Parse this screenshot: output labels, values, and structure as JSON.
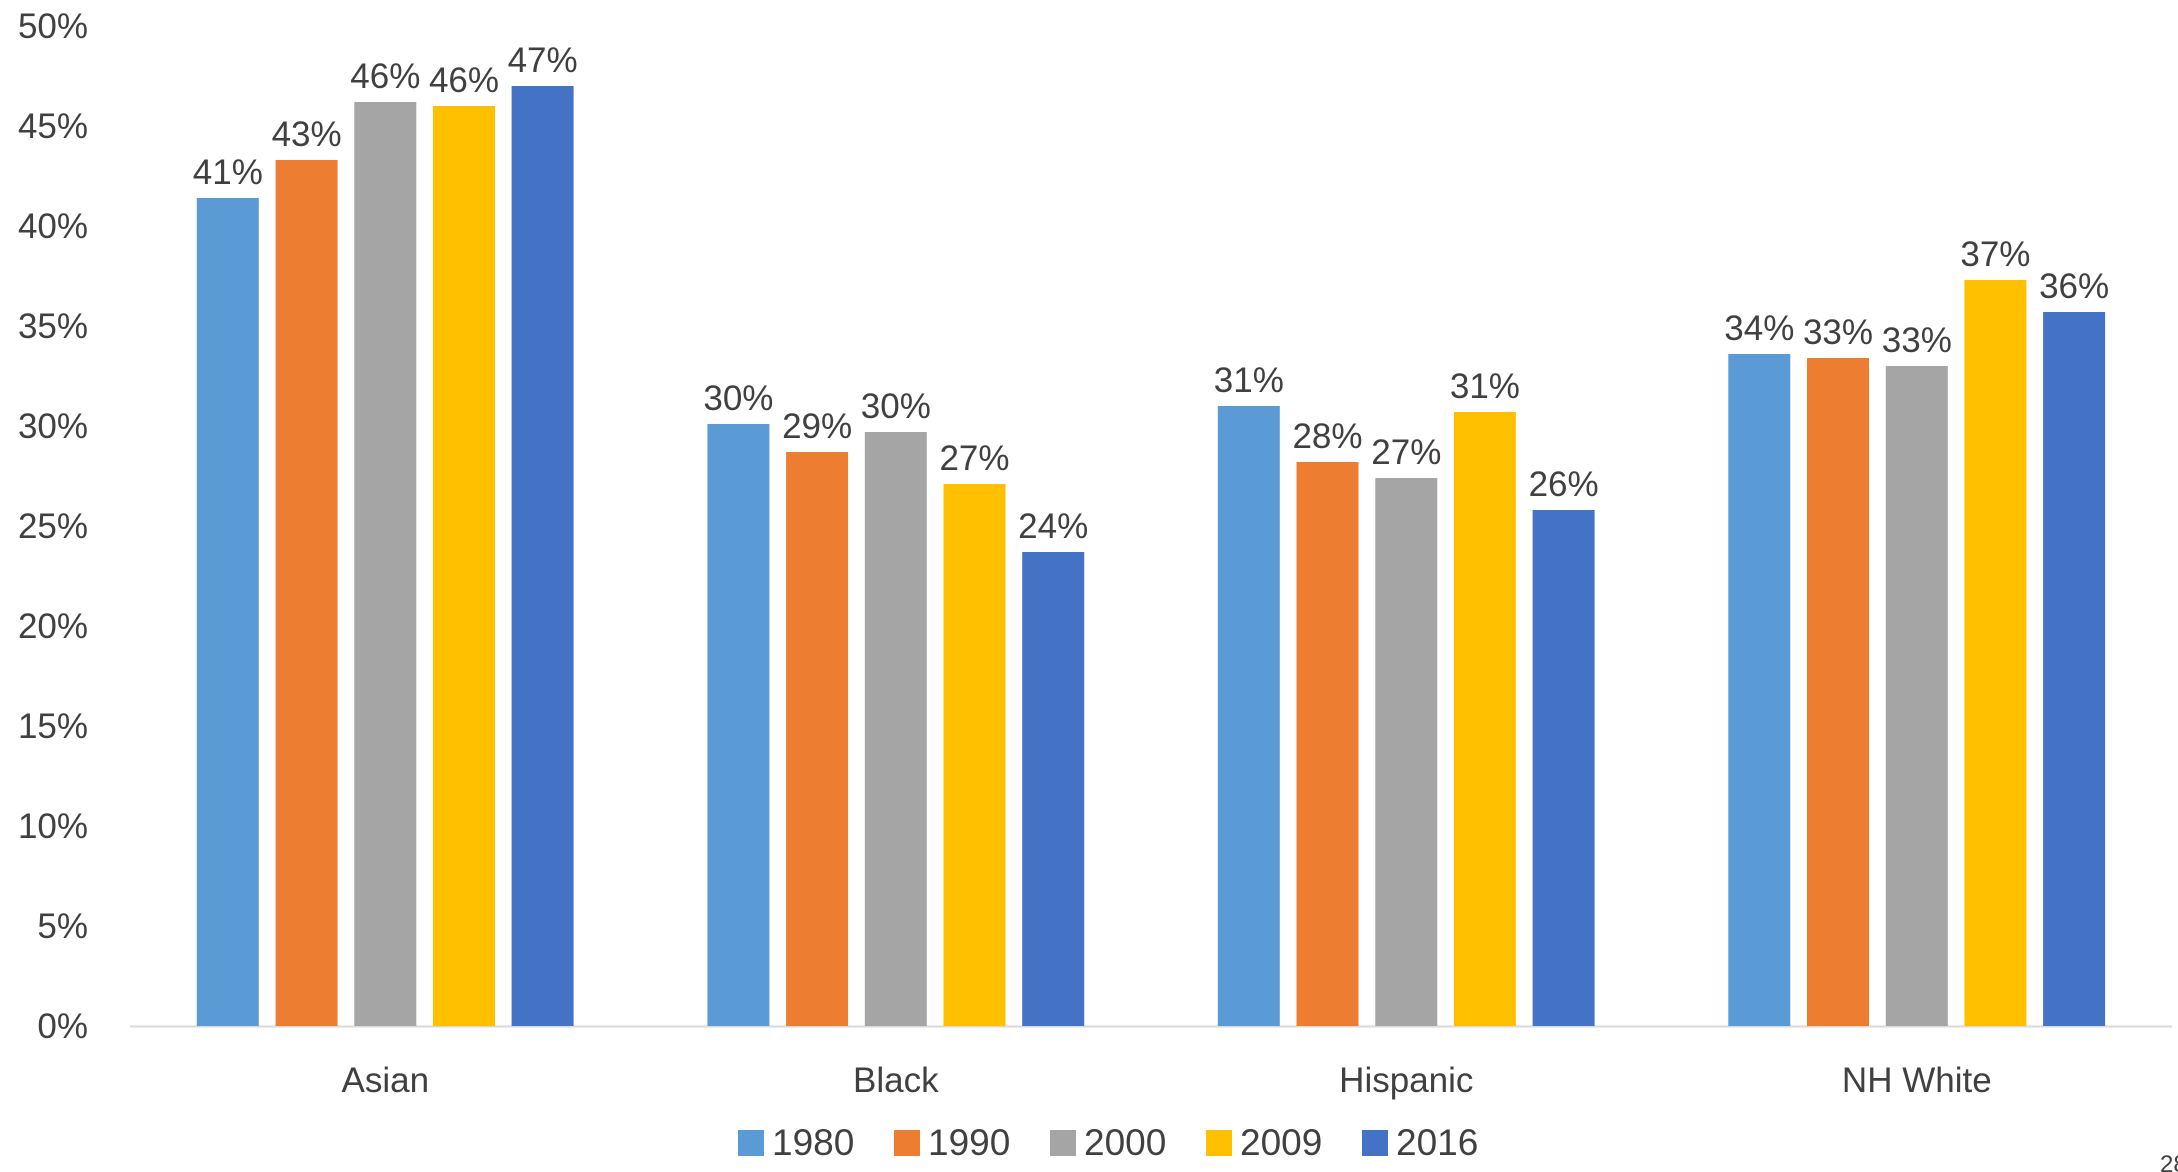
{
  "page_number": "28",
  "chart_data": {
    "type": "bar",
    "title": "",
    "xlabel": "",
    "ylabel": "",
    "categories": [
      "Asian",
      "Black",
      "Hispanic",
      "NH White"
    ],
    "ylim": [
      0,
      50
    ],
    "y_ticks": [
      0,
      5,
      10,
      15,
      20,
      25,
      30,
      35,
      40,
      45,
      50
    ],
    "y_tick_format": "percent",
    "grid": false,
    "legend_position": "bottom",
    "series": [
      {
        "name": "1980",
        "color": "#5B9BD5",
        "values": [
          41.4,
          30.1,
          31.0,
          33.6
        ],
        "labels": [
          "41%",
          "30%",
          "31%",
          "34%"
        ]
      },
      {
        "name": "1990",
        "color": "#ED7D31",
        "values": [
          43.3,
          28.7,
          28.2,
          33.4
        ],
        "labels": [
          "43%",
          "29%",
          "28%",
          "33%"
        ]
      },
      {
        "name": "2000",
        "color": "#A5A5A5",
        "values": [
          46.2,
          29.7,
          27.4,
          33.0
        ],
        "labels": [
          "46%",
          "30%",
          "27%",
          "33%"
        ]
      },
      {
        "name": "2009",
        "color": "#FFC000",
        "values": [
          46.0,
          27.1,
          30.7,
          37.3
        ],
        "labels": [
          "46%",
          "27%",
          "31%",
          "37%"
        ]
      },
      {
        "name": "2016",
        "color": "#4472C4",
        "values": [
          47.0,
          23.7,
          25.8,
          35.7
        ],
        "labels": [
          "47%",
          "24%",
          "26%",
          "36%"
        ]
      }
    ]
  }
}
